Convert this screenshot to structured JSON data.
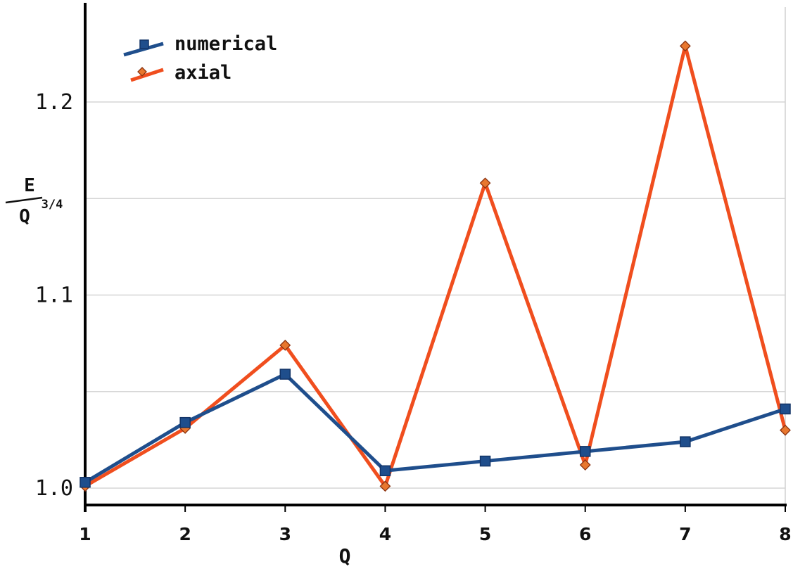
{
  "chart_data": {
    "type": "line",
    "x": [
      1,
      2,
      3,
      4,
      5,
      6,
      7,
      8
    ],
    "series": [
      {
        "name": "numerical",
        "values": [
          1.003,
          1.034,
          1.059,
          1.009,
          1.014,
          1.019,
          1.024,
          1.041
        ],
        "color": "#1f4e8c",
        "marker": "square"
      },
      {
        "name": "axial",
        "values": [
          1.001,
          1.031,
          1.074,
          1.001,
          1.158,
          1.012,
          1.229,
          1.03
        ],
        "color": "#f04e1e",
        "marker": "diamond"
      }
    ],
    "xlabel": "Q",
    "ylabel_numerator": "E",
    "ylabel_denominator": "Q",
    "ylabel_exponent": "3/4",
    "xlim": [
      1,
      8
    ],
    "ylim": [
      0.99,
      1.25
    ],
    "xticks": [
      "1",
      "2",
      "3",
      "4",
      "5",
      "6",
      "7",
      "8"
    ],
    "yticks": [
      {
        "value": 1.0,
        "label": "1.0"
      },
      {
        "value": 1.1,
        "label": "1.1"
      },
      {
        "value": 1.2,
        "label": "1.2"
      }
    ],
    "gridlines": [
      1.0,
      1.05,
      1.1,
      1.15,
      1.2
    ],
    "grid": true,
    "legend": "top-left"
  }
}
